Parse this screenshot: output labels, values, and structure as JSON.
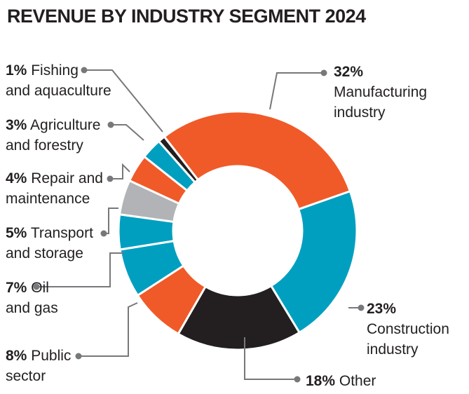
{
  "chart_data": {
    "type": "pie",
    "variant": "donut",
    "title": "REVENUE BY INDUSTRY SEGMENT 2024",
    "unit": "%",
    "slices": [
      {
        "pct": "32%",
        "value": 32,
        "label1": "Manufacturing",
        "label2": "industry",
        "color": "#f05a28"
      },
      {
        "pct": "23%",
        "value": 23,
        "label1": "Construction",
        "label2": "industry",
        "color": "#009fc0"
      },
      {
        "pct": "18%",
        "value": 18,
        "label1": "Other",
        "label2": "",
        "color": "#231f20"
      },
      {
        "pct": "8%",
        "value": 8,
        "label1": "Public",
        "label2": "sector",
        "color": "#f05a28"
      },
      {
        "pct": "7%",
        "value": 7,
        "label1": "Oil",
        "label2": "and gas",
        "color": "#009fc0"
      },
      {
        "pct": "5%",
        "value": 5,
        "label1": "Transport",
        "label2": "and storage",
        "color": "#009fc0"
      },
      {
        "pct": "5%",
        "value": 5,
        "label1": "",
        "label2": "",
        "color": "#b1b3b6"
      },
      {
        "pct": "4%",
        "value": 4,
        "label1": "Repair and",
        "label2": "maintenance",
        "color": "#f05a28"
      },
      {
        "pct": "3%",
        "value": 3,
        "label1": "Agriculture",
        "label2": "and forestry",
        "color": "#009fc0"
      },
      {
        "pct": "1%",
        "value": 1,
        "label1": "Fishing",
        "label2": "and aquaculture",
        "color": "#231f20"
      }
    ]
  }
}
